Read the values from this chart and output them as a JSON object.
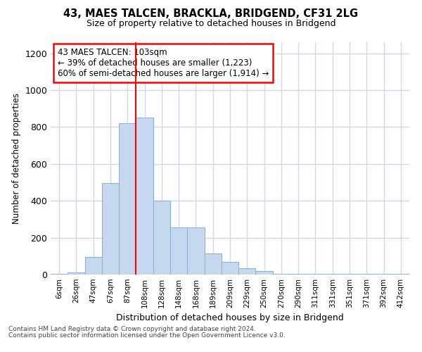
{
  "title1": "43, MAES TALCEN, BRACKLA, BRIDGEND, CF31 2LG",
  "title2": "Size of property relative to detached houses in Bridgend",
  "xlabel": "Distribution of detached houses by size in Bridgend",
  "ylabel": "Number of detached properties",
  "categories": [
    "6sqm",
    "26sqm",
    "47sqm",
    "67sqm",
    "87sqm",
    "108sqm",
    "128sqm",
    "148sqm",
    "168sqm",
    "189sqm",
    "209sqm",
    "229sqm",
    "250sqm",
    "270sqm",
    "290sqm",
    "311sqm",
    "331sqm",
    "351sqm",
    "371sqm",
    "392sqm",
    "412sqm"
  ],
  "values": [
    5,
    10,
    95,
    495,
    820,
    850,
    400,
    255,
    255,
    115,
    70,
    35,
    20,
    5,
    5,
    5,
    3,
    3,
    3,
    3,
    3
  ],
  "bar_color": "#c5d8f0",
  "bar_edge_color": "#8db4d8",
  "vline_color": "red",
  "vline_x_idx": 5,
  "annotation_text": "43 MAES TALCEN: 103sqm\n← 39% of detached houses are smaller (1,223)\n60% of semi-detached houses are larger (1,914) →",
  "annotation_box_color": "white",
  "annotation_box_edge": "red",
  "ylim": [
    0,
    1260
  ],
  "yticks": [
    0,
    200,
    400,
    600,
    800,
    1000,
    1200
  ],
  "footer1": "Contains HM Land Registry data © Crown copyright and database right 2024.",
  "footer2": "Contains public sector information licensed under the Open Government Licence v3.0.",
  "bg_color": "#ffffff",
  "plot_bg_color": "#ffffff",
  "grid_color": "#d0d8e8"
}
